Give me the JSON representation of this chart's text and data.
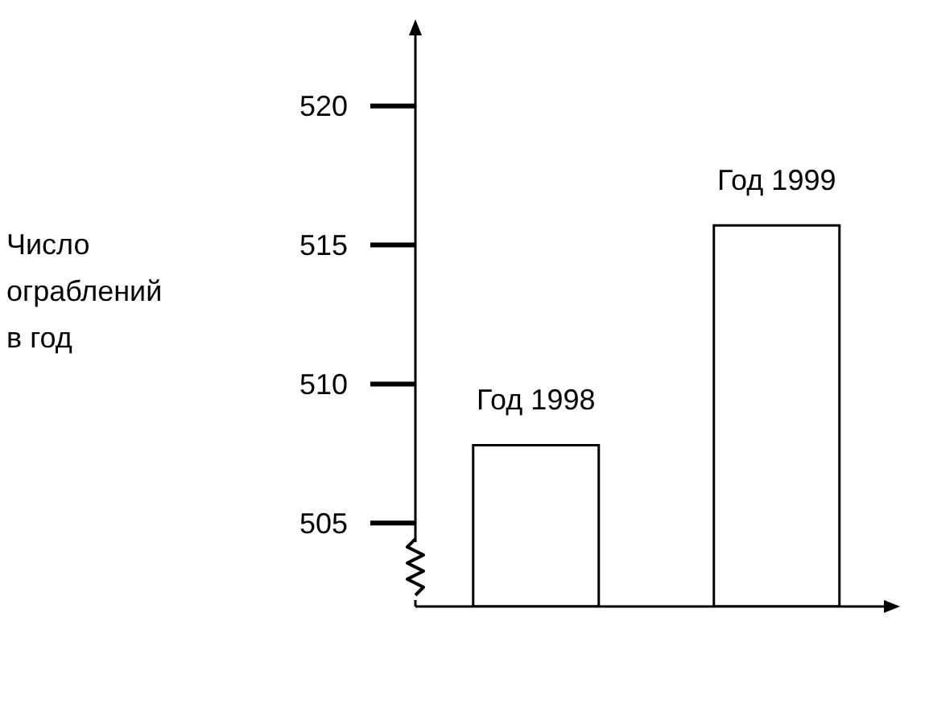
{
  "chart_data": {
    "type": "bar",
    "ylabel": "Число ограблений в год",
    "categories": [
      "Год 1998",
      "Год 1999"
    ],
    "values": [
      507.8,
      515.7
    ],
    "color": "#ffffff",
    "ylim": [
      502,
      523
    ],
    "yticks": [
      505,
      510,
      515,
      520
    ],
    "tick_labels": "y"
  }
}
